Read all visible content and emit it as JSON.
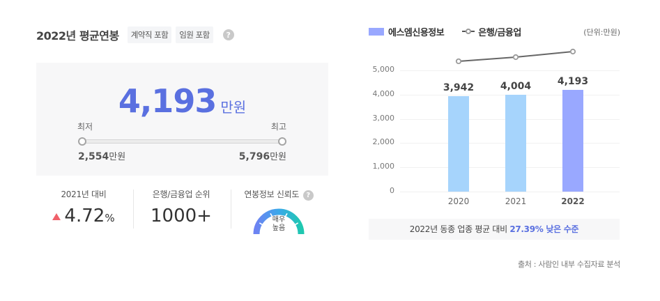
{
  "header": {
    "title": "2022년 평균연봉",
    "tags": [
      "계약직 포함",
      "임원 포함"
    ],
    "help_icon": "question-circle-icon"
  },
  "salary": {
    "value": "4,193",
    "unit": "만원",
    "min_label": "최저",
    "max_label": "최고",
    "min_value": "2,554",
    "max_value": "5,796",
    "value_unit": "만원",
    "accent_color": "#5a70e0"
  },
  "stats": {
    "yoy": {
      "label": "2021년 대비",
      "value": "4.72",
      "unit": "%",
      "direction": "up",
      "arrow_icon": "triangle-up-icon",
      "color": "#f0616a"
    },
    "rank": {
      "label": "은행/금융업 순위",
      "value": "1000+"
    },
    "reliability": {
      "label": "연봉정보 신뢰도",
      "gauge_line1": "매우",
      "gauge_line2": "높음",
      "help_icon": "question-circle-icon"
    }
  },
  "chart": {
    "legend": {
      "bar": "에스엠신용정보",
      "line": "은행/금융업"
    },
    "unit": "(단위:만원)",
    "comparison_prefix": "2022년 동종 업종 평균 대비 ",
    "comparison_highlight": "27.39% 낮은 수준",
    "source": "출처 : 사람인 내부 수집자료 분석"
  },
  "chart_data": {
    "type": "bar",
    "title": "",
    "categories": [
      "2020",
      "2021",
      "2022"
    ],
    "series": [
      {
        "name": "에스엠신용정보",
        "type": "bar",
        "values": [
          3942,
          4004,
          4193
        ],
        "labels": [
          "3,942",
          "4,004",
          "4,193"
        ],
        "colors": [
          "#a6d4fc",
          "#a6d4fc",
          "#99a8ff"
        ]
      },
      {
        "name": "은행/금융업",
        "type": "line",
        "values": [
          5375,
          5545,
          5775
        ],
        "color": "#666666"
      }
    ],
    "yticks": [
      "5,000",
      "4,000",
      "3,000",
      "2,000",
      "1,000",
      "0"
    ],
    "ylim": [
      0,
      5000
    ],
    "xlabel": "",
    "ylabel": "",
    "unit": "만원",
    "grid": true,
    "legend_position": "top-left"
  }
}
